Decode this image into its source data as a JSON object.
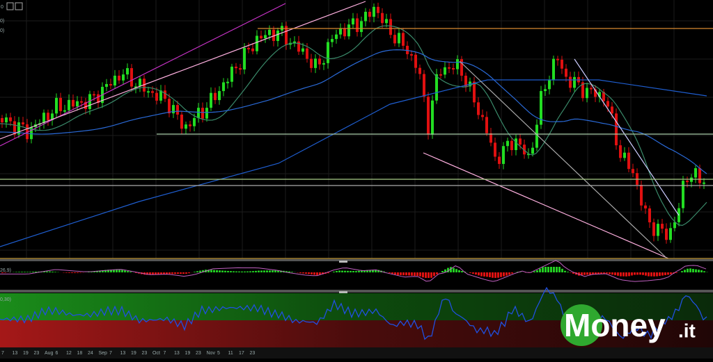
{
  "toolbar": {
    "labels": [
      "0",
      "0)",
      "0)"
    ]
  },
  "panels": {
    "macd_label": "26,9)",
    "rsi_label": "0,30)"
  },
  "time_axis": {
    "labels": [
      "7",
      "13",
      "19",
      "23",
      "Aug",
      "6",
      "12",
      "18",
      "24",
      "Sep",
      "7",
      "13",
      "19",
      "23",
      "Oct",
      "7",
      "13",
      "19",
      "23",
      "Nov",
      "5",
      "11",
      "17",
      "23"
    ]
  },
  "watermark": {
    "brand": "Money",
    "suffix": ".it"
  }
}
